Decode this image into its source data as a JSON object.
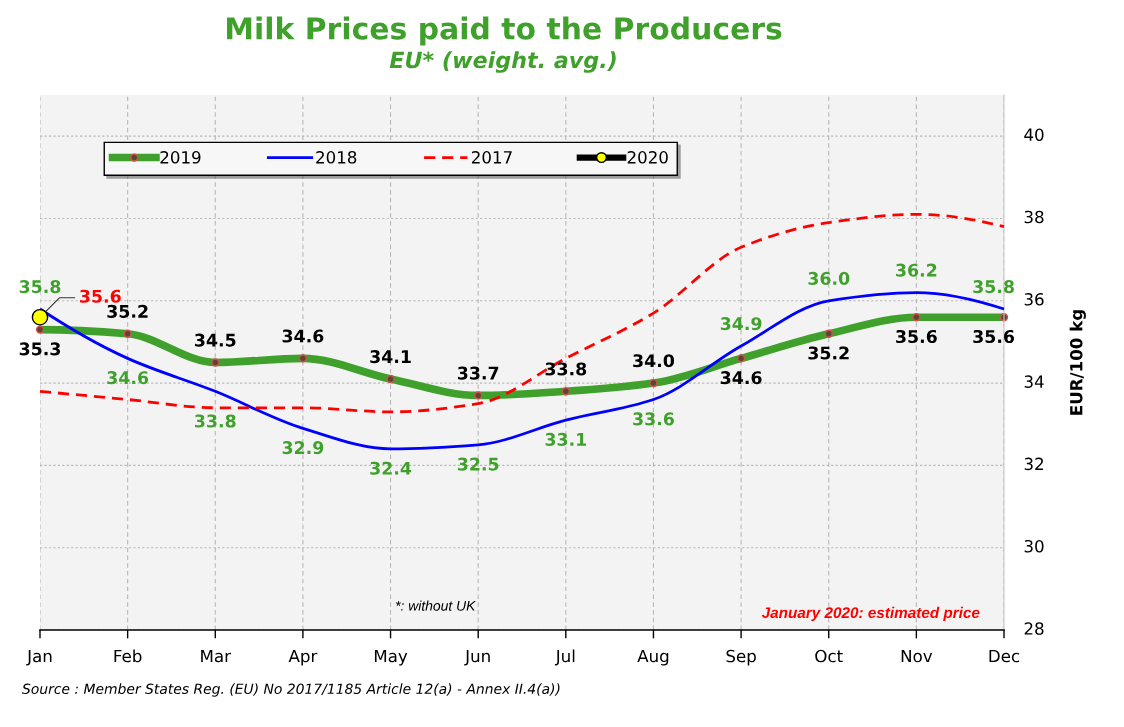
{
  "chart_data": {
    "type": "line",
    "title": "Milk Prices paid to the Producers",
    "subtitle": "EU* (weight. avg.)",
    "ylabel": "EUR/100 kg",
    "categories": [
      "Jan",
      "Feb",
      "Mar",
      "Apr",
      "May",
      "Jun",
      "Jul",
      "Aug",
      "Sep",
      "Oct",
      "Nov",
      "Dec"
    ],
    "series": [
      {
        "name": "2019",
        "color": "#3fa12b",
        "values": [
          35.3,
          35.2,
          34.5,
          34.6,
          34.1,
          33.7,
          33.8,
          34.0,
          34.6,
          35.2,
          35.6,
          35.6
        ],
        "value_labels": [
          "35.3",
          "35.2",
          "34.5",
          "34.6",
          "34.1",
          "33.7",
          "33.8",
          "34.0",
          "34.6",
          "35.2",
          "35.6",
          "35.6"
        ],
        "marker": "circle",
        "line_style": "solid"
      },
      {
        "name": "2018",
        "color": "#0000ff",
        "values": [
          35.8,
          34.6,
          33.8,
          32.9,
          32.4,
          32.5,
          33.1,
          33.6,
          34.9,
          36.0,
          36.2,
          35.8
        ],
        "value_labels": [
          "35.8",
          "34.6",
          "33.8",
          "32.9",
          "32.4",
          "32.5",
          "33.1",
          "33.6",
          "34.9",
          "36.0",
          "36.2",
          "35.8"
        ],
        "line_style": "solid"
      },
      {
        "name": "2017",
        "color": "#ff0000",
        "values": [
          33.8,
          33.6,
          33.4,
          33.4,
          33.3,
          33.5,
          34.6,
          35.7,
          37.3,
          37.9,
          38.1,
          37.8
        ],
        "line_style": "dashed"
      },
      {
        "name": "2020",
        "color": "#ffff00",
        "values": [
          35.6,
          null,
          null,
          null,
          null,
          null,
          null,
          null,
          null,
          null,
          null,
          null
        ],
        "value_labels": [
          "35.6",
          null,
          null,
          null,
          null,
          null,
          null,
          null,
          null,
          null,
          null,
          null
        ],
        "marker": "circle"
      }
    ],
    "ylim": [
      28,
      41
    ],
    "yticks": [
      28,
      30,
      32,
      34,
      36,
      38,
      40
    ],
    "grid": true,
    "legend": "top left",
    "annotations": [
      "*: without UK",
      "January 2020: estimated price",
      "Source : Member States Reg. (EU) No 2017/1185 Article 12(a) - Annex II.4(a))"
    ]
  }
}
